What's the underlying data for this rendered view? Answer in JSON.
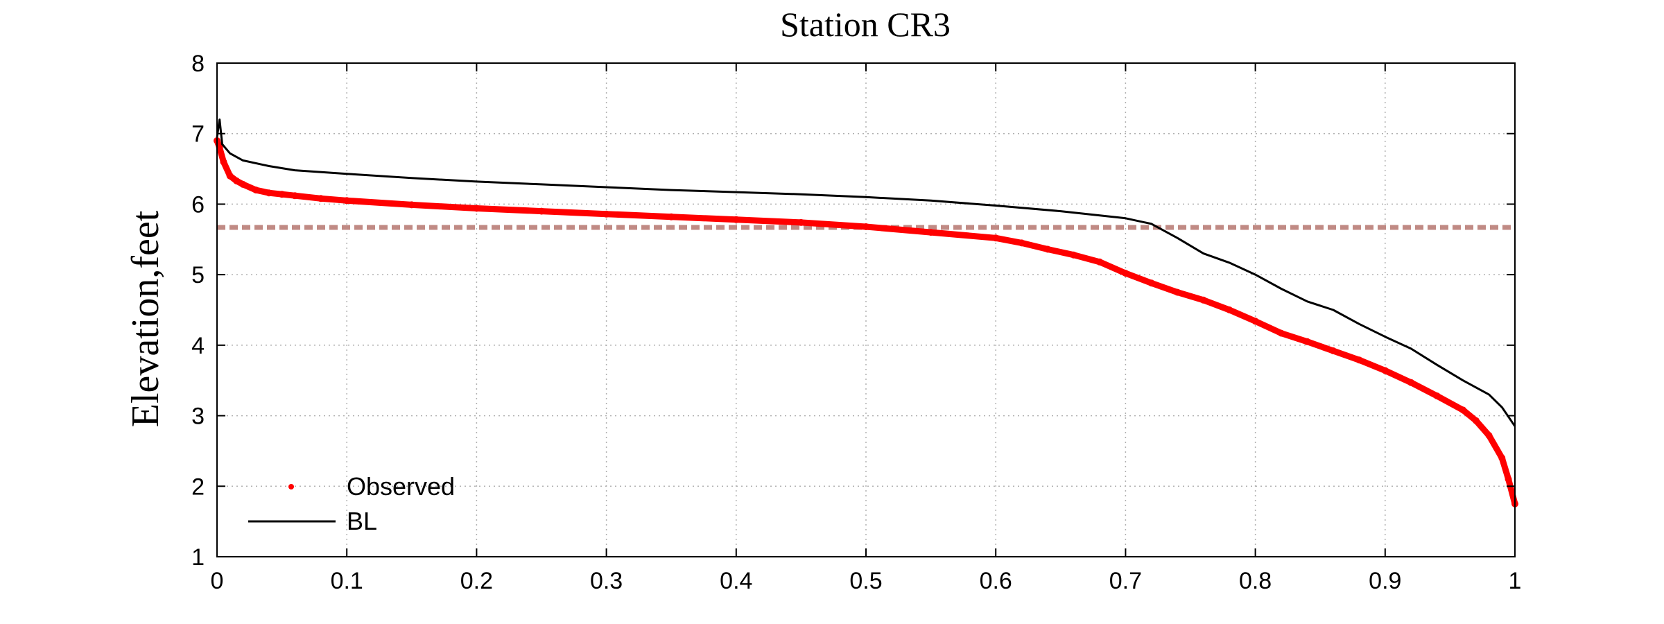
{
  "chart_data": {
    "type": "line",
    "title": "Station CR3",
    "xlabel": "",
    "ylabel": "Elevation,feet",
    "xlim": [
      0,
      1
    ],
    "ylim": [
      1,
      8
    ],
    "xticks": [
      0,
      0.1,
      0.2,
      0.3,
      0.4,
      0.5,
      0.6,
      0.7,
      0.8,
      0.9,
      1
    ],
    "xtick_labels": [
      "0",
      "0.1",
      "0.2",
      "0.3",
      "0.4",
      "0.5",
      "0.6",
      "0.7",
      "0.8",
      "0.9",
      "1"
    ],
    "yticks": [
      1,
      2,
      3,
      4,
      5,
      6,
      7,
      8
    ],
    "ytick_labels": [
      "1",
      "2",
      "3",
      "4",
      "5",
      "6",
      "7",
      "8"
    ],
    "grid": true,
    "legend_position": "bottom-left",
    "series": [
      {
        "name": "Observed",
        "style": "markers",
        "color": "#ff0000",
        "x": [
          0,
          0.002,
          0.005,
          0.01,
          0.015,
          0.02,
          0.03,
          0.04,
          0.05,
          0.06,
          0.08,
          0.1,
          0.15,
          0.2,
          0.25,
          0.3,
          0.35,
          0.4,
          0.45,
          0.5,
          0.55,
          0.6,
          0.62,
          0.64,
          0.66,
          0.68,
          0.7,
          0.72,
          0.74,
          0.76,
          0.78,
          0.8,
          0.82,
          0.84,
          0.86,
          0.88,
          0.9,
          0.92,
          0.94,
          0.96,
          0.97,
          0.98,
          0.99,
          0.995,
          1
        ],
        "y": [
          6.9,
          6.8,
          6.6,
          6.4,
          6.33,
          6.28,
          6.2,
          6.16,
          6.14,
          6.12,
          6.08,
          6.05,
          5.99,
          5.94,
          5.9,
          5.86,
          5.82,
          5.78,
          5.74,
          5.68,
          5.6,
          5.52,
          5.45,
          5.36,
          5.28,
          5.18,
          5.02,
          4.88,
          4.75,
          4.64,
          4.5,
          4.34,
          4.17,
          4.05,
          3.92,
          3.79,
          3.64,
          3.47,
          3.28,
          3.08,
          2.93,
          2.72,
          2.4,
          2.1,
          1.75
        ]
      },
      {
        "name": "BL",
        "style": "line",
        "color": "#000000",
        "x": [
          0,
          0.002,
          0.004,
          0.01,
          0.02,
          0.04,
          0.06,
          0.1,
          0.15,
          0.2,
          0.25,
          0.3,
          0.35,
          0.4,
          0.45,
          0.5,
          0.55,
          0.6,
          0.65,
          0.7,
          0.72,
          0.74,
          0.76,
          0.78,
          0.8,
          0.82,
          0.84,
          0.86,
          0.88,
          0.9,
          0.92,
          0.94,
          0.96,
          0.98,
          0.99,
          1
        ],
        "y": [
          6.95,
          7.2,
          6.85,
          6.72,
          6.62,
          6.54,
          6.48,
          6.43,
          6.37,
          6.32,
          6.28,
          6.24,
          6.2,
          6.17,
          6.14,
          6.1,
          6.05,
          5.98,
          5.9,
          5.8,
          5.72,
          5.52,
          5.3,
          5.17,
          5.0,
          4.8,
          4.62,
          4.5,
          4.3,
          4.12,
          3.95,
          3.72,
          3.5,
          3.3,
          3.12,
          2.85
        ]
      },
      {
        "style": "dashed",
        "color": "#c08a84",
        "x": [
          0,
          1
        ],
        "y": [
          5.67,
          5.67
        ]
      }
    ]
  }
}
